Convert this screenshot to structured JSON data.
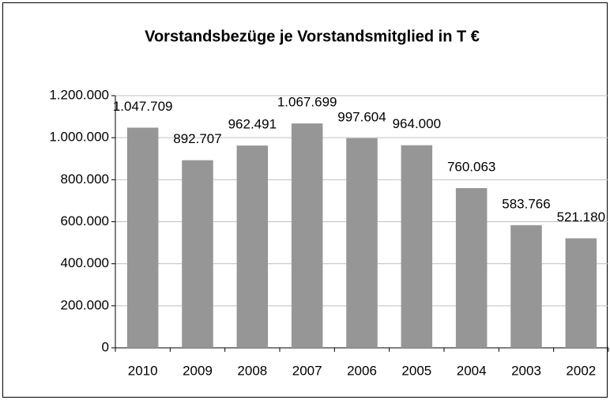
{
  "chart_data": {
    "type": "bar",
    "title": "Vorstandsbezüge je Vorstandsmitglied in T €",
    "categories": [
      "2010",
      "2009",
      "2008",
      "2007",
      "2006",
      "2005",
      "2004",
      "2003",
      "2002"
    ],
    "values": [
      1047709,
      892707,
      962491,
      1067699,
      997604,
      964000,
      760063,
      583766,
      521180
    ],
    "value_labels": [
      "1.047.709",
      "892.707",
      "962.491",
      "1.067.699",
      "997.604",
      "964.000",
      "760.063",
      "583.766",
      "521.180"
    ],
    "color": "#969696",
    "ylim": [
      0,
      1200000
    ],
    "yticks": [
      0,
      {
        "value": 200000,
        "label": "200.000"
      },
      {
        "value": 400000,
        "label": "400.000"
      },
      {
        "value": 600000,
        "label": "600.000"
      },
      {
        "value": 800000,
        "label": "800.000"
      },
      {
        "value": 1000000,
        "label": "1.000.000"
      },
      {
        "value": 1200000,
        "label": "1.200.000"
      }
    ],
    "grid": true
  }
}
